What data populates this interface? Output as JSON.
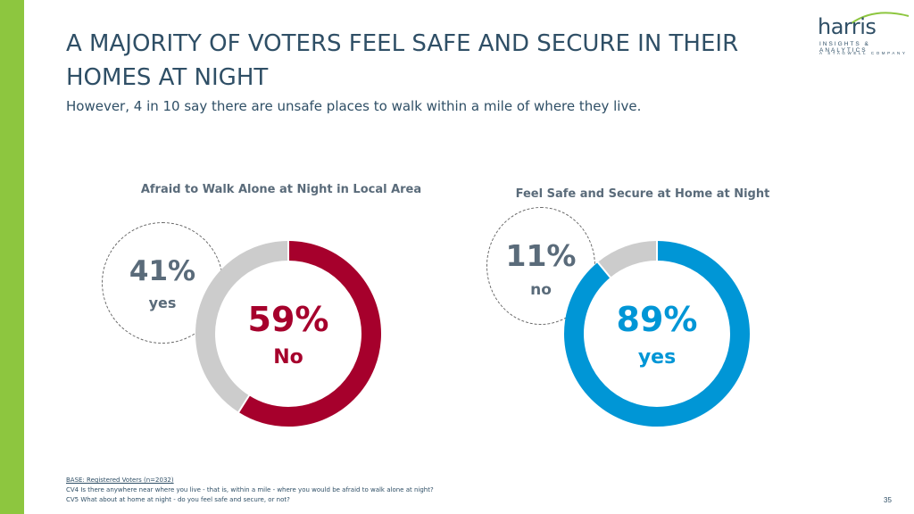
{
  "page": {
    "title": "A MAJORITY OF VOTERS FEEL SAFE AND SECURE IN THEIR HOMES AT NIGHT",
    "subtitle": "However, 4 in 10 say there are unsafe places to walk within a mile of where they live.",
    "page_number": "35"
  },
  "logo": {
    "word": "harris",
    "line1": "INSIGHTS & ANALYTICS",
    "line2": "A STAGWELL COMPANY"
  },
  "footer": {
    "base": "BASE: Registered Voters (n=2032)",
    "cv4": "CV4 Is there anywhere near where you live - that is, within a mile - where you would be afraid to walk alone at night?",
    "cv5": "CV5 What about at home at night - do you feel safe and secure, or not?"
  },
  "colors": {
    "accent_bar": "#8dc63f",
    "no_red": "#a6002c",
    "yes_blue": "#0096d6",
    "remainder_gray": "#cccccc",
    "title_text": "#2f4f66"
  },
  "chart_data": [
    {
      "type": "pie",
      "title": "Afraid to Walk Alone at Night in Local Area",
      "slices": [
        {
          "label": "No",
          "value": 59,
          "display": "59%",
          "color": "#a6002c"
        },
        {
          "label": "yes",
          "value": 41,
          "display": "41%",
          "color": "#cccccc"
        }
      ],
      "center": {
        "value": "59%",
        "label": "No"
      },
      "callout": {
        "value": "41%",
        "label": "yes"
      }
    },
    {
      "type": "pie",
      "title": "Feel Safe and Secure at Home at Night",
      "slices": [
        {
          "label": "yes",
          "value": 89,
          "display": "89%",
          "color": "#0096d6"
        },
        {
          "label": "no",
          "value": 11,
          "display": "11%",
          "color": "#cccccc"
        }
      ],
      "center": {
        "value": "89%",
        "label": "yes"
      },
      "callout": {
        "value": "11%",
        "label": "no"
      }
    }
  ]
}
